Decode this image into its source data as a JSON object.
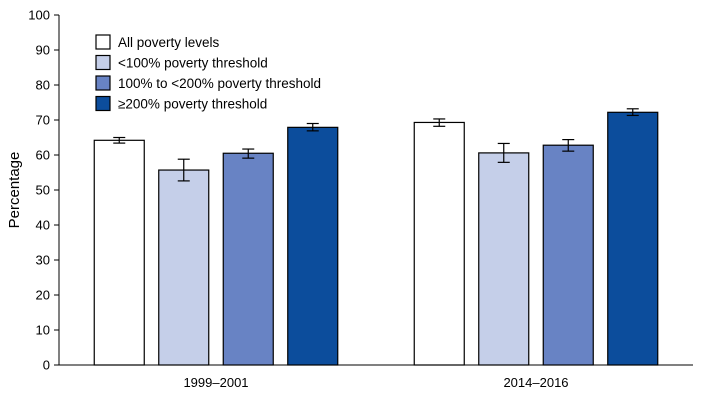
{
  "chart_data": {
    "type": "bar",
    "title": "",
    "xlabel": "",
    "ylabel": "Percentage",
    "ylim": [
      0,
      100
    ],
    "yticks": [
      0,
      10,
      20,
      30,
      40,
      50,
      60,
      70,
      80,
      90,
      100
    ],
    "categories": [
      "1999–2001",
      "2014–2016"
    ],
    "series": [
      {
        "name": "All poverty levels",
        "color": "#ffffff",
        "values": [
          64.2,
          69.3
        ],
        "ci_low": [
          63.4,
          68.2
        ],
        "ci_high": [
          65.0,
          70.3
        ]
      },
      {
        "name": "<100% poverty threshold",
        "color": "#c5cfe9",
        "values": [
          55.7,
          60.6
        ],
        "ci_low": [
          52.6,
          57.9
        ],
        "ci_high": [
          58.8,
          63.3
        ]
      },
      {
        "name": "100% to <200% poverty threshold",
        "color": "#6883c4",
        "values": [
          60.5,
          62.8
        ],
        "ci_low": [
          59.1,
          61.1
        ],
        "ci_high": [
          61.7,
          64.4
        ]
      },
      {
        "name": "≥200% poverty threshold",
        "color": "#0c4d9c",
        "values": [
          67.9,
          72.2
        ],
        "ci_low": [
          66.9,
          71.3
        ],
        "ci_high": [
          69.0,
          73.2
        ]
      }
    ],
    "legend_position": "top-left"
  }
}
